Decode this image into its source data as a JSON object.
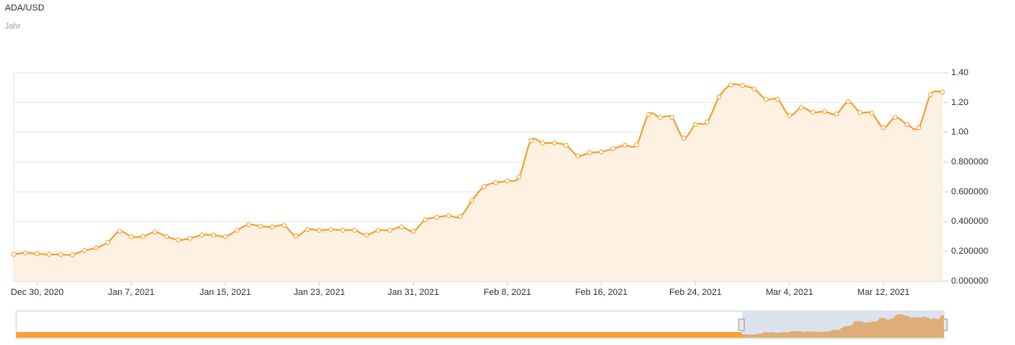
{
  "chart_data": {
    "type": "line",
    "title": "ADA/USD",
    "subtitle": "Jahr",
    "x": [
      "2020-12-28",
      "2020-12-29",
      "2020-12-30",
      "2020-12-31",
      "2021-01-01",
      "2021-01-02",
      "2021-01-03",
      "2021-01-04",
      "2021-01-05",
      "2021-01-06",
      "2021-01-07",
      "2021-01-08",
      "2021-01-09",
      "2021-01-10",
      "2021-01-11",
      "2021-01-12",
      "2021-01-13",
      "2021-01-14",
      "2021-01-15",
      "2021-01-16",
      "2021-01-17",
      "2021-01-18",
      "2021-01-19",
      "2021-01-20",
      "2021-01-21",
      "2021-01-22",
      "2021-01-23",
      "2021-01-24",
      "2021-01-25",
      "2021-01-26",
      "2021-01-27",
      "2021-01-28",
      "2021-01-29",
      "2021-01-30",
      "2021-01-31",
      "2021-02-01",
      "2021-02-02",
      "2021-02-03",
      "2021-02-04",
      "2021-02-05",
      "2021-02-06",
      "2021-02-07",
      "2021-02-08",
      "2021-02-09",
      "2021-02-10",
      "2021-02-11",
      "2021-02-12",
      "2021-02-13",
      "2021-02-14",
      "2021-02-15",
      "2021-02-16",
      "2021-02-17",
      "2021-02-18",
      "2021-02-19",
      "2021-02-20",
      "2021-02-21",
      "2021-02-22",
      "2021-02-23",
      "2021-02-24",
      "2021-02-25",
      "2021-02-26",
      "2021-02-27",
      "2021-02-28",
      "2021-03-01",
      "2021-03-02",
      "2021-03-03",
      "2021-03-04",
      "2021-03-05",
      "2021-03-06",
      "2021-03-07",
      "2021-03-08",
      "2021-03-09",
      "2021-03-10",
      "2021-03-11",
      "2021-03-12",
      "2021-03-13",
      "2021-03-14",
      "2021-03-15",
      "2021-03-16",
      "2021-03-17"
    ],
    "series": [
      {
        "name": "ADA/USD",
        "color": "#f7a035",
        "values": [
          0.18,
          0.19,
          0.184,
          0.18,
          0.179,
          0.178,
          0.206,
          0.224,
          0.26,
          0.335,
          0.3,
          0.3,
          0.33,
          0.3,
          0.277,
          0.288,
          0.31,
          0.31,
          0.3,
          0.342,
          0.38,
          0.369,
          0.364,
          0.374,
          0.304,
          0.347,
          0.342,
          0.347,
          0.342,
          0.342,
          0.31,
          0.342,
          0.342,
          0.364,
          0.336,
          0.412,
          0.429,
          0.44,
          0.434,
          0.543,
          0.635,
          0.662,
          0.673,
          0.7,
          0.944,
          0.928,
          0.928,
          0.912,
          0.841,
          0.863,
          0.868,
          0.89,
          0.912,
          0.917,
          1.118,
          1.1,
          1.1,
          0.96,
          1.053,
          1.069,
          1.237,
          1.318,
          1.313,
          1.291,
          1.221,
          1.221,
          1.112,
          1.167,
          1.134,
          1.139,
          1.123,
          1.205,
          1.134,
          1.129,
          1.031,
          1.1,
          1.053,
          1.031,
          1.253,
          1.27
        ]
      }
    ],
    "xlim": [
      "2020-12-28",
      "2021-03-17"
    ],
    "xticks": [
      {
        "value": "2020-12-30",
        "label": "Dec 30, 2020"
      },
      {
        "value": "2021-01-07",
        "label": "Jan 7, 2021"
      },
      {
        "value": "2021-01-15",
        "label": "Jan 15, 2021"
      },
      {
        "value": "2021-01-23",
        "label": "Jan 23, 2021"
      },
      {
        "value": "2021-01-31",
        "label": "Jan 31, 2021"
      },
      {
        "value": "2021-02-08",
        "label": "Feb 8, 2021"
      },
      {
        "value": "2021-02-16",
        "label": "Feb 16, 2021"
      },
      {
        "value": "2021-02-24",
        "label": "Feb 24, 2021"
      },
      {
        "value": "2021-03-04",
        "label": "Mar 4, 2021"
      },
      {
        "value": "2021-03-12",
        "label": "Mar 12, 2021"
      }
    ],
    "ylim": [
      0,
      1.4
    ],
    "yticks": [
      {
        "value": 0,
        "label": "0.000000"
      },
      {
        "value": 0.2,
        "label": "0.200000"
      },
      {
        "value": 0.4,
        "label": "0.400000"
      },
      {
        "value": 0.6,
        "label": "0.600000"
      },
      {
        "value": 0.8,
        "label": "0.800000"
      },
      {
        "value": 1,
        "label": "1.00"
      },
      {
        "value": 1.2,
        "label": "1.20"
      },
      {
        "value": 1.4,
        "label": "1.40"
      }
    ],
    "grid": true,
    "area_color": "#fdf1e1"
  }
}
